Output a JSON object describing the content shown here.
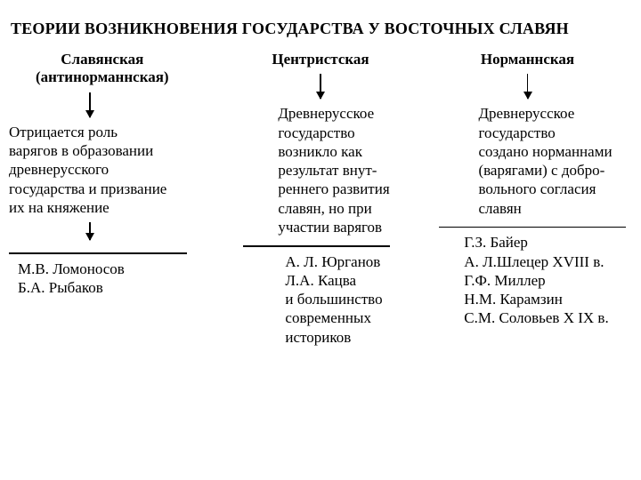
{
  "title": "ТЕОРИИ ВОЗНИКНОВЕНИЯ ГОСУДАРСТВА У ВОСТОЧНЫХ СЛАВЯН",
  "columns": [
    {
      "header": "Славянская\n(антинорманнская)",
      "description": "Отрицается роль\nварягов в образовании\nдревнерусского\nгосударства и  призвание\nих на княжение",
      "authors": "М.В. Ломоносов\n Б.А. Рыбаков"
    },
    {
      "header": "Центристская",
      "description": "Древнерусское\n государство\n возникло как\n результат внут-\nреннего развития\nславян, но при\n участии варягов",
      "authors": "А. Л. Юрганов\nЛ.А. Кацва\nи большинство\nсовременных\nисториков"
    },
    {
      "header": "Норманнская",
      "description": "Древнерусское\n государство\n создано норманнами\n (варягами) с добро-\nвольного согласия\n славян",
      "authors": "Г.З. Байер\n А. Л.Шлецер    XVIII в.\n  Г.Ф. Миллер\nН.М. Карамзин\nС.М. Соловьев   X IX в."
    }
  ],
  "style": {
    "background": "#ffffff",
    "text_color": "#000000",
    "arrow_color": "#000000",
    "font_family": "Times New Roman",
    "title_fontsize": 18,
    "header_fontsize": 17,
    "body_fontsize": 17
  }
}
